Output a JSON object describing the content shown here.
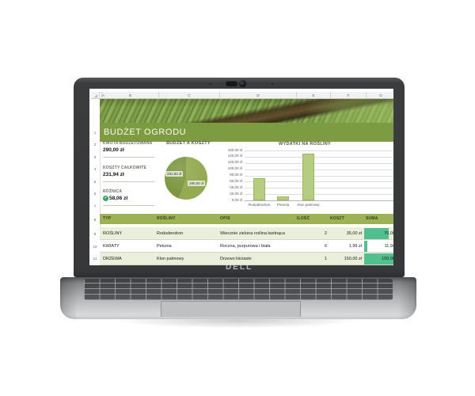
{
  "laptop": {
    "brand": "DELL"
  },
  "sheet": {
    "columns": [
      "A",
      "B",
      "C",
      "D",
      "E",
      "F",
      "G"
    ],
    "rows": [
      "1",
      "2",
      "3",
      "4",
      "5",
      "6",
      "7",
      "8",
      "9",
      "10",
      "11"
    ],
    "title": "BUDŻET OGRODU",
    "summary": [
      {
        "label": "KWOTA BUDŻETOWANA",
        "value": "290,00 zł"
      },
      {
        "label": "KOSZTY CAŁKOWITE",
        "value": "231,94 zł"
      },
      {
        "label": "RÓŻNICA",
        "value": "58,06 zł",
        "icon": "check-circle"
      }
    ],
    "table": {
      "headers": [
        "TYP",
        "ROŚLINY",
        "OPIS",
        "ILOŚĆ",
        "KOSZT",
        "SUMA"
      ],
      "rows": [
        [
          "ROŚLINY",
          "Rododendron",
          "Wiecznie zielona roślina kwitnąca",
          "2",
          "35,00 zł",
          "70,00"
        ],
        [
          "KWIATY",
          "Petunia",
          "Roczna, purpurowa i biała",
          "6",
          "1,99 zł",
          "11,94"
        ],
        [
          "DRZEWA",
          "Klon palmowy",
          "Drzewo liściaste",
          "1",
          "150,00 zł",
          "150,00"
        ]
      ]
    }
  },
  "chart_data": [
    {
      "type": "pie",
      "title": "BUDŻET A KOSZTY",
      "labels": [
        "231,94 zł",
        "290,00 zł"
      ],
      "values": [
        231.94,
        290.0
      ],
      "colors": [
        "#7d9740",
        "#95ab51"
      ],
      "legend_position": "none"
    },
    {
      "type": "bar",
      "title": "WYDATKI NA ROŚLINY",
      "categories": [
        "Rododendron",
        "Petunia",
        "Klon palmowy"
      ],
      "values": [
        70.0,
        11.94,
        150.0
      ],
      "ylim": [
        0,
        160
      ],
      "ytick_labels": [
        "160,00 zł",
        "140,00 zł",
        "120,00 zł",
        "100,00 zł",
        "80,00 zł",
        "60,00 zł",
        "40,00 zł",
        "20,00 zł",
        "0,00 zł"
      ],
      "bar_color": "#b6cc7e",
      "grid": true
    }
  ]
}
